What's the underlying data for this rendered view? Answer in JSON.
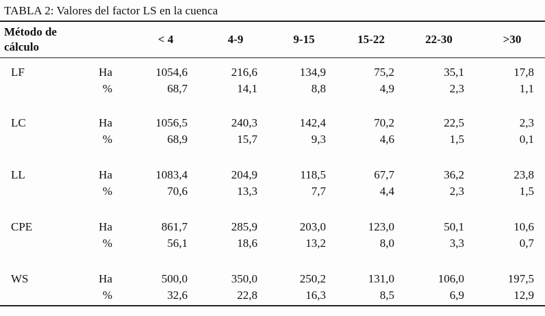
{
  "caption": "TABLA 2: Valores del factor LS en la cuenca",
  "header": {
    "method_line1": "Método de",
    "method_line2": "cálculo",
    "columns": [
      "< 4",
      "4-9",
      "9-15",
      "15-22",
      "22-30",
      ">30"
    ]
  },
  "rows": [
    {
      "method": "LF",
      "ha_label": "Ha",
      "pct_label": "%",
      "ha": [
        "1054,6",
        "216,6",
        "134,9",
        "75,2",
        "35,1",
        "17,8"
      ],
      "pct": [
        "68,7",
        "14,1",
        "8,8",
        "4,9",
        "2,3",
        "1,1"
      ]
    },
    {
      "method": "LC",
      "ha_label": "Ha",
      "pct_label": "%",
      "ha": [
        "1056,5",
        "240,3",
        "142,4",
        "70,2",
        "22,5",
        "2,3"
      ],
      "pct": [
        "68,9",
        "15,7",
        "9,3",
        "4,6",
        "1,5",
        "0,1"
      ]
    },
    {
      "method": "LL",
      "ha_label": "Ha",
      "pct_label": "%",
      "ha": [
        "1083,4",
        "204,9",
        "118,5",
        "67,7",
        "36,2",
        "23,8"
      ],
      "pct": [
        "70,6",
        "13,3",
        "7,7",
        "4,4",
        "2,3",
        "1,5"
      ]
    },
    {
      "method": "CPE",
      "ha_label": "Ha",
      "pct_label": "%",
      "ha": [
        "861,7",
        "285,9",
        "203,0",
        "123,0",
        "50,1",
        "10,6"
      ],
      "pct": [
        "56,1",
        "18,6",
        "13,2",
        "8,0",
        "3,3",
        "0,7"
      ]
    },
    {
      "method": "WS",
      "ha_label": "Ha",
      "pct_label": "%",
      "ha": [
        "500,0",
        "350,0",
        "250,2",
        "131,0",
        "106,0",
        "197,5"
      ],
      "pct": [
        "32,6",
        "22,8",
        "16,3",
        "8,5",
        "6,9",
        "12,9"
      ]
    }
  ]
}
